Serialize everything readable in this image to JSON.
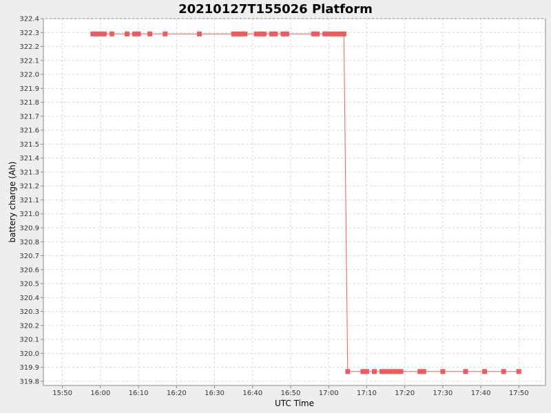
{
  "chart_data": {
    "type": "line",
    "title": "20210127T155026 Platform",
    "xlabel": "UTC Time",
    "ylabel": "battery charge (Ah)",
    "x_ticks": [
      "15:50",
      "16:00",
      "16:10",
      "16:20",
      "16:30",
      "16:40",
      "16:50",
      "17:00",
      "17:10",
      "17:20",
      "17:30",
      "17:40",
      "17:50"
    ],
    "y_ticks": [
      "319.8",
      "319.9",
      "320.0",
      "320.1",
      "320.2",
      "320.3",
      "320.4",
      "320.5",
      "320.6",
      "320.7",
      "320.8",
      "320.9",
      "321.0",
      "321.1",
      "321.2",
      "321.3",
      "321.4",
      "321.5",
      "321.6",
      "321.7",
      "321.8",
      "321.9",
      "322.0",
      "322.1",
      "322.2",
      "322.3",
      "322.4"
    ],
    "xlim": [
      "15:45",
      "17:57"
    ],
    "ylim": [
      319.77,
      322.4
    ],
    "grid": true,
    "series": [
      {
        "color": "#f05a5a",
        "points": [
          [
            "15:58",
            322.29
          ],
          [
            "15:59",
            322.29
          ],
          [
            "16:00",
            322.29
          ],
          [
            "16:01",
            322.29
          ],
          [
            "16:03",
            322.29
          ],
          [
            "16:07",
            322.29
          ],
          [
            "16:09",
            322.29
          ],
          [
            "16:10",
            322.29
          ],
          [
            "16:13",
            322.29
          ],
          [
            "16:17",
            322.29
          ],
          [
            "16:26",
            322.29
          ],
          [
            "16:35",
            322.29
          ],
          [
            "16:36",
            322.29
          ],
          [
            "16:37",
            322.29
          ],
          [
            "16:38",
            322.29
          ],
          [
            "16:41",
            322.29
          ],
          [
            "16:42",
            322.29
          ],
          [
            "16:43",
            322.29
          ],
          [
            "16:45",
            322.29
          ],
          [
            "16:46",
            322.29
          ],
          [
            "16:48",
            322.29
          ],
          [
            "16:49",
            322.29
          ],
          [
            "16:56",
            322.29
          ],
          [
            "16:57",
            322.29
          ],
          [
            "16:59",
            322.29
          ],
          [
            "17:00",
            322.29
          ],
          [
            "17:01",
            322.29
          ],
          [
            "17:02",
            322.29
          ],
          [
            "17:03",
            322.29
          ],
          [
            "17:04",
            322.29
          ],
          [
            "17:05",
            319.87
          ],
          [
            "17:09",
            319.87
          ],
          [
            "17:10",
            319.87
          ],
          [
            "17:12",
            319.87
          ],
          [
            "17:14",
            319.87
          ],
          [
            "17:15",
            319.87
          ],
          [
            "17:16",
            319.87
          ],
          [
            "17:17",
            319.87
          ],
          [
            "17:18",
            319.87
          ],
          [
            "17:19",
            319.87
          ],
          [
            "17:24",
            319.87
          ],
          [
            "17:25",
            319.87
          ],
          [
            "17:30",
            319.87
          ],
          [
            "17:36",
            319.87
          ],
          [
            "17:41",
            319.87
          ],
          [
            "17:46",
            319.87
          ],
          [
            "17:50",
            319.87
          ]
        ]
      }
    ]
  }
}
